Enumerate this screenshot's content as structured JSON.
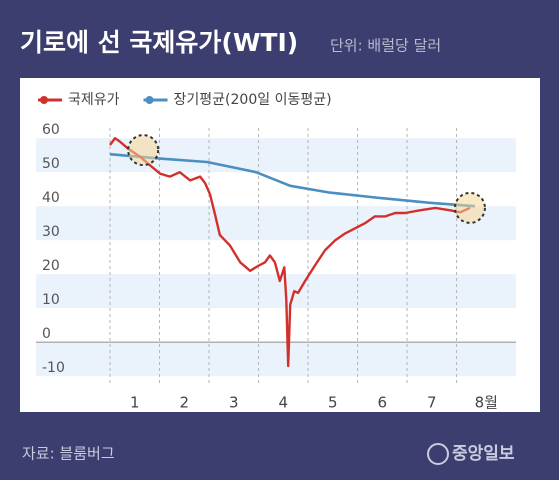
{
  "chart_data": {
    "type": "line",
    "title": "기로에 선 국제유가(WTI)",
    "subtitle": "단위: 배럴당 달러",
    "source": "자료: 블룸버그",
    "logo": "중앙일보",
    "xlim": [
      0,
      8.2
    ],
    "xticks": [
      {
        "value": 0.5,
        "label": "1"
      },
      {
        "value": 1.5,
        "label": "2"
      },
      {
        "value": 2.5,
        "label": "3"
      },
      {
        "value": 3.5,
        "label": "4"
      },
      {
        "value": 4.5,
        "label": "5"
      },
      {
        "value": 5.5,
        "label": "6"
      },
      {
        "value": 6.5,
        "label": "7"
      },
      {
        "value": 7.6,
        "label": "8월"
      }
    ],
    "xgrid": [
      0,
      1,
      2,
      3,
      4,
      5,
      6,
      7
    ],
    "ylim": [
      -12,
      63
    ],
    "yticks": [
      60,
      50,
      40,
      30,
      20,
      10,
      0,
      -10
    ],
    "series": [
      {
        "name": "국제유가",
        "color": "#d2302c",
        "x": [
          0,
          0.1,
          0.2,
          0.36,
          0.61,
          0.81,
          1.01,
          1.21,
          1.41,
          1.62,
          1.82,
          1.92,
          2.02,
          2.12,
          2.22,
          2.42,
          2.63,
          2.83,
          2.99,
          3.13,
          3.23,
          3.33,
          3.43,
          3.52,
          3.56,
          3.6,
          3.64,
          3.72,
          3.8,
          3.94,
          4.14,
          4.34,
          4.55,
          4.75,
          4.95,
          5.15,
          5.35,
          5.56,
          5.76,
          5.96,
          6.26,
          6.57,
          6.87,
          7.07,
          7.27
        ],
        "values": [
          58,
          60,
          59,
          57,
          54.5,
          52,
          49.6,
          48.7,
          50,
          47.6,
          48.7,
          46.8,
          43.5,
          37.6,
          31.5,
          28.5,
          23.5,
          21,
          22.4,
          23.5,
          25.5,
          23.5,
          18,
          22,
          12.5,
          -7,
          11,
          15,
          14.5,
          18,
          22.6,
          27,
          30,
          32,
          33.5,
          35,
          37,
          37,
          38,
          38,
          38.8,
          39.5,
          38.8,
          38.2,
          39.5
        ]
      },
      {
        "name": "장기평균(200일 이동평균)",
        "color": "#4b8fc1",
        "x": [
          0,
          1.01,
          1.96,
          2.95,
          3.64,
          4.44,
          5.45,
          6.46,
          7.37
        ],
        "values": [
          55.3,
          54,
          53,
          50,
          46,
          44,
          42.4,
          41,
          40
        ]
      }
    ],
    "highlights": [
      {
        "x": 0.67,
        "y": 56.5
      },
      {
        "x": 7.27,
        "y": 39.5
      }
    ],
    "grid": true
  }
}
